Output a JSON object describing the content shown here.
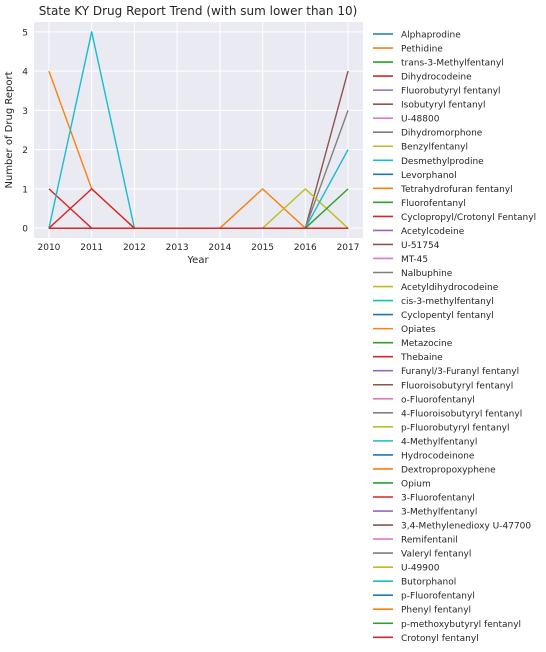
{
  "chart_data": {
    "type": "line",
    "title": "State KY Drug Report Trend (with sum lower than 10)",
    "xlabel": "Year",
    "ylabel": "Number of Drug Report",
    "x": [
      2010,
      2011,
      2012,
      2013,
      2014,
      2015,
      2016,
      2017
    ],
    "xlim": [
      2009.65,
      2017.35
    ],
    "ylim": [
      -0.25,
      5.25
    ],
    "yticks": [
      0,
      1,
      2,
      3,
      4,
      5
    ],
    "grid": true,
    "legend_position": "outside-right",
    "background": "#eaeaf2",
    "series": [
      {
        "name": "Alphaprodine",
        "color": "#1f77b4",
        "values": [
          0,
          0,
          0,
          0,
          0,
          0,
          0,
          0
        ]
      },
      {
        "name": "Pethidine",
        "color": "#ff7f0e",
        "values": [
          4,
          1,
          0,
          0,
          0,
          0,
          0,
          0
        ]
      },
      {
        "name": "trans-3-Methylfentanyl",
        "color": "#2ca02c",
        "values": [
          0,
          0,
          0,
          0,
          0,
          0,
          0,
          0
        ]
      },
      {
        "name": "Dihydrocodeine",
        "color": "#d62728",
        "values": [
          1,
          0,
          0,
          0,
          0,
          0,
          0,
          0
        ]
      },
      {
        "name": "Fluorobutyryl fentanyl",
        "color": "#9467bd",
        "values": [
          0,
          0,
          0,
          0,
          0,
          0,
          0,
          0
        ]
      },
      {
        "name": "Isobutyryl fentanyl",
        "color": "#8c564b",
        "values": [
          0,
          0,
          0,
          0,
          0,
          0,
          0,
          0
        ]
      },
      {
        "name": "U-48800",
        "color": "#e377c2",
        "values": [
          0,
          0,
          0,
          0,
          0,
          0,
          0,
          0
        ]
      },
      {
        "name": "Dihydromorphone",
        "color": "#7f7f7f",
        "values": [
          0,
          0,
          0,
          0,
          0,
          0,
          0,
          0
        ]
      },
      {
        "name": "Benzylfentanyl",
        "color": "#bcbd22",
        "values": [
          0,
          0,
          0,
          0,
          0,
          0,
          0,
          0
        ]
      },
      {
        "name": "Desmethylprodine",
        "color": "#17becf",
        "values": [
          0,
          5,
          0,
          0,
          0,
          0,
          0,
          0
        ]
      },
      {
        "name": "Levorphanol",
        "color": "#1f77b4",
        "values": [
          0,
          0,
          0,
          0,
          0,
          0,
          0,
          0
        ]
      },
      {
        "name": "Tetrahydrofuran fentanyl",
        "color": "#ff7f0e",
        "values": [
          0,
          0,
          0,
          0,
          0,
          1,
          0,
          0
        ]
      },
      {
        "name": "Fluorofentanyl",
        "color": "#2ca02c",
        "values": [
          0,
          0,
          0,
          0,
          0,
          0,
          0,
          0
        ]
      },
      {
        "name": "Cyclopropyl/Crotonyl Fentanyl",
        "color": "#d62728",
        "values": [
          0,
          0,
          0,
          0,
          0,
          0,
          0,
          0
        ]
      },
      {
        "name": "Acetylcodeine",
        "color": "#9467bd",
        "values": [
          0,
          0,
          0,
          0,
          0,
          0,
          0,
          0
        ]
      },
      {
        "name": "U-51754",
        "color": "#8c564b",
        "values": [
          0,
          0,
          0,
          0,
          0,
          0,
          0,
          4
        ]
      },
      {
        "name": "MT-45",
        "color": "#e377c2",
        "values": [
          0,
          0,
          0,
          0,
          0,
          0,
          0,
          0
        ]
      },
      {
        "name": "Nalbuphine",
        "color": "#7f7f7f",
        "values": [
          0,
          0,
          0,
          0,
          0,
          0,
          0,
          3
        ]
      },
      {
        "name": "Acetyldihydrocodeine",
        "color": "#bcbd22",
        "values": [
          0,
          0,
          0,
          0,
          0,
          0,
          1,
          0
        ]
      },
      {
        "name": "cis-3-methylfentanyl",
        "color": "#17becf",
        "values": [
          0,
          0,
          0,
          0,
          0,
          0,
          0,
          2
        ]
      },
      {
        "name": "Cyclopentyl fentanyl",
        "color": "#1f77b4",
        "values": [
          0,
          0,
          0,
          0,
          0,
          0,
          0,
          0
        ]
      },
      {
        "name": "Opiates",
        "color": "#ff7f0e",
        "values": [
          0,
          0,
          0,
          0,
          0,
          0,
          0,
          0
        ]
      },
      {
        "name": "Metazocine",
        "color": "#2ca02c",
        "values": [
          0,
          0,
          0,
          0,
          0,
          0,
          0,
          1
        ]
      },
      {
        "name": "Thebaine",
        "color": "#d62728",
        "values": [
          0,
          1,
          0,
          0,
          0,
          0,
          0,
          0
        ]
      },
      {
        "name": "Furanyl/3-Furanyl fentanyl",
        "color": "#9467bd",
        "values": [
          0,
          0,
          0,
          0,
          0,
          0,
          0,
          0
        ]
      },
      {
        "name": "Fluoroisobutyryl fentanyl",
        "color": "#8c564b",
        "values": [
          0,
          0,
          0,
          0,
          0,
          0,
          0,
          0
        ]
      },
      {
        "name": "o-Fluorofentanyl",
        "color": "#e377c2",
        "values": [
          0,
          0,
          0,
          0,
          0,
          0,
          0,
          0
        ]
      },
      {
        "name": "4-Fluoroisobutyryl fentanyl",
        "color": "#7f7f7f",
        "values": [
          0,
          0,
          0,
          0,
          0,
          0,
          0,
          0
        ]
      },
      {
        "name": "p-Fluorobutyryl fentanyl",
        "color": "#bcbd22",
        "values": [
          0,
          0,
          0,
          0,
          0,
          0,
          0,
          0
        ]
      },
      {
        "name": "4-Methylfentanyl",
        "color": "#17becf",
        "values": [
          0,
          0,
          0,
          0,
          0,
          0,
          0,
          0
        ]
      },
      {
        "name": "Hydrocodeinone",
        "color": "#1f77b4",
        "values": [
          0,
          0,
          0,
          0,
          0,
          0,
          0,
          0
        ]
      },
      {
        "name": "Dextropropoxyphene",
        "color": "#ff7f0e",
        "values": [
          0,
          0,
          0,
          0,
          0,
          0,
          0,
          0
        ]
      },
      {
        "name": "Opium",
        "color": "#2ca02c",
        "values": [
          0,
          0,
          0,
          0,
          0,
          0,
          0,
          0
        ]
      },
      {
        "name": "3-Fluorofentanyl",
        "color": "#d62728",
        "values": [
          0,
          0,
          0,
          0,
          0,
          0,
          0,
          0
        ]
      },
      {
        "name": "3-Methylfentanyl",
        "color": "#9467bd",
        "values": [
          0,
          0,
          0,
          0,
          0,
          0,
          0,
          0
        ]
      },
      {
        "name": "3,4-Methylenedioxy U-47700",
        "color": "#8c564b",
        "values": [
          0,
          0,
          0,
          0,
          0,
          0,
          0,
          0
        ]
      },
      {
        "name": "Remifentanil",
        "color": "#e377c2",
        "values": [
          0,
          0,
          0,
          0,
          0,
          0,
          0,
          0
        ]
      },
      {
        "name": "Valeryl fentanyl",
        "color": "#7f7f7f",
        "values": [
          0,
          0,
          0,
          0,
          0,
          0,
          0,
          0
        ]
      },
      {
        "name": "U-49900",
        "color": "#bcbd22",
        "values": [
          0,
          0,
          0,
          0,
          0,
          0,
          0,
          0
        ]
      },
      {
        "name": "Butorphanol",
        "color": "#17becf",
        "values": [
          0,
          0,
          0,
          0,
          0,
          0,
          0,
          0
        ]
      },
      {
        "name": "p-Fluorofentanyl",
        "color": "#1f77b4",
        "values": [
          0,
          0,
          0,
          0,
          0,
          0,
          0,
          0
        ]
      },
      {
        "name": "Phenyl fentanyl",
        "color": "#ff7f0e",
        "values": [
          0,
          0,
          0,
          0,
          0,
          0,
          0,
          0
        ]
      },
      {
        "name": "p-methoxybutyryl fentanyl",
        "color": "#2ca02c",
        "values": [
          0,
          0,
          0,
          0,
          0,
          0,
          0,
          0
        ]
      },
      {
        "name": "Crotonyl fentanyl",
        "color": "#d62728",
        "values": [
          0,
          0,
          0,
          0,
          0,
          0,
          0,
          0
        ]
      }
    ]
  }
}
